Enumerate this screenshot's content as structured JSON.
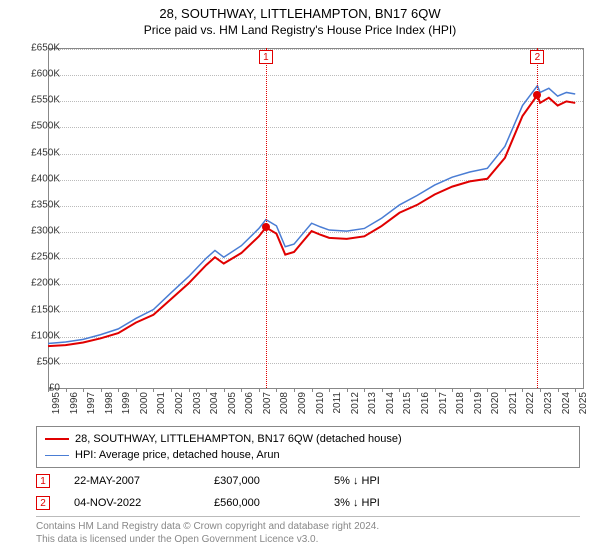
{
  "title_line1": "28, SOUTHWAY, LITTLEHAMPTON, BN17 6QW",
  "title_line2": "Price paid vs. HM Land Registry's House Price Index (HPI)",
  "chart": {
    "type": "line",
    "background_color": "#ffffff",
    "grid_color": "#bbbbbb",
    "grid_style": "dotted",
    "axis_color": "#888888",
    "label_color": "#333333",
    "label_fontsize": 10,
    "xlim": [
      1995,
      2025.5
    ],
    "ylim": [
      0,
      650000
    ],
    "ytick_step": 50000,
    "yticks": [
      "£0",
      "£50K",
      "£100K",
      "£150K",
      "£200K",
      "£250K",
      "£300K",
      "£350K",
      "£400K",
      "£450K",
      "£500K",
      "£550K",
      "£600K",
      "£650K"
    ],
    "xticks": [
      1995,
      1996,
      1997,
      1998,
      1999,
      2000,
      2001,
      2002,
      2003,
      2004,
      2005,
      2006,
      2007,
      2008,
      2009,
      2010,
      2011,
      2012,
      2013,
      2014,
      2015,
      2016,
      2017,
      2018,
      2019,
      2020,
      2021,
      2022,
      2023,
      2024,
      2025
    ],
    "series": [
      {
        "name": "28, SOUTHWAY, LITTLEHAMPTON, BN17 6QW (detached house)",
        "color": "#e00000",
        "line_width": 2,
        "x": [
          1995,
          1996,
          1997,
          1998,
          1999,
          2000,
          2001,
          2002,
          2003,
          2004,
          2004.5,
          2005,
          2006,
          2007,
          2007.4,
          2008,
          2008.5,
          2009,
          2009.5,
          2010,
          2010.5,
          2011,
          2012,
          2013,
          2014,
          2015,
          2016,
          2017,
          2018,
          2019,
          2020,
          2021,
          2022,
          2022.85,
          2023,
          2023.5,
          2024,
          2024.5,
          2025
        ],
        "y": [
          80000,
          82000,
          87000,
          95000,
          105000,
          125000,
          140000,
          170000,
          200000,
          235000,
          250000,
          238000,
          258000,
          290000,
          307000,
          295000,
          255000,
          260000,
          280000,
          300000,
          293000,
          287000,
          285000,
          290000,
          310000,
          335000,
          350000,
          370000,
          385000,
          395000,
          400000,
          440000,
          520000,
          560000,
          545000,
          555000,
          540000,
          548000,
          545000
        ]
      },
      {
        "name": "HPI: Average price, detached house, Arun",
        "color": "#4a7dd4",
        "line_width": 1.5,
        "x": [
          1995,
          1996,
          1997,
          1998,
          1999,
          2000,
          2001,
          2002,
          2003,
          2004,
          2004.5,
          2005,
          2006,
          2007,
          2007.4,
          2008,
          2008.5,
          2009,
          2009.5,
          2010,
          2010.5,
          2011,
          2012,
          2013,
          2014,
          2015,
          2016,
          2017,
          2018,
          2019,
          2020,
          2021,
          2022,
          2022.85,
          2023,
          2023.5,
          2024,
          2024.5,
          2025
        ],
        "y": [
          85000,
          88000,
          93000,
          102000,
          113000,
          133000,
          150000,
          182000,
          213000,
          248000,
          263000,
          250000,
          272000,
          305000,
          322000,
          310000,
          270000,
          275000,
          295000,
          315000,
          308000,
          302000,
          300000,
          305000,
          325000,
          350000,
          368000,
          388000,
          403000,
          413000,
          420000,
          462000,
          540000,
          578000,
          565000,
          573000,
          558000,
          565000,
          562000
        ]
      }
    ],
    "sale_markers": [
      {
        "id": "1",
        "x": 2007.4,
        "y": 307000
      },
      {
        "id": "2",
        "x": 2022.85,
        "y": 560000
      }
    ]
  },
  "legend": {
    "items": [
      {
        "color": "#e00000",
        "label": "28, SOUTHWAY, LITTLEHAMPTON, BN17 6QW (detached house)"
      },
      {
        "color": "#4a7dd4",
        "label": "HPI: Average price, detached house, Arun"
      }
    ]
  },
  "sales": [
    {
      "id": "1",
      "date": "22-MAY-2007",
      "price": "£307,000",
      "delta": "5% ↓ HPI"
    },
    {
      "id": "2",
      "date": "04-NOV-2022",
      "price": "£560,000",
      "delta": "3% ↓ HPI"
    }
  ],
  "footer_line1": "Contains HM Land Registry data © Crown copyright and database right 2024.",
  "footer_line2": "This data is licensed under the Open Government Licence v3.0."
}
